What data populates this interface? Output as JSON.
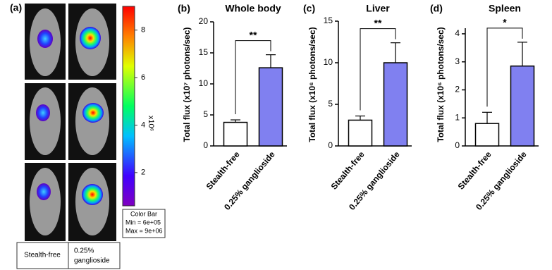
{
  "chart_data": [
    {
      "type": "bar",
      "panel_label": "(b)",
      "title": "Whole body",
      "y_label": "Total flux (x10⁷ photons/sec)",
      "categories": [
        "Stealth-free",
        "0.25% ganglioside"
      ],
      "values": [
        3.8,
        12.6
      ],
      "errors": [
        0.4,
        2.1
      ],
      "colors": [
        "#ffffff",
        "#8080f0"
      ],
      "significance": "**",
      "ylim": [
        0,
        20
      ],
      "yticks": [
        0,
        5,
        10,
        15,
        20
      ]
    },
    {
      "type": "bar",
      "panel_label": "(c)",
      "title": "Liver",
      "y_label": "Total flux (x10⁶ photons/sec)",
      "categories": [
        "Stealth-free",
        "0.25% ganglioside"
      ],
      "values": [
        3.1,
        10.0
      ],
      "errors": [
        0.5,
        2.4
      ],
      "colors": [
        "#ffffff",
        "#8080f0"
      ],
      "significance": "**",
      "ylim": [
        0,
        15
      ],
      "yticks": [
        0,
        5,
        10,
        15
      ]
    },
    {
      "type": "bar",
      "panel_label": "(d)",
      "title": "Spleen",
      "y_label": "Total flux (x10⁶ photons/sec)",
      "categories": [
        "Stealth-free",
        "0.25% ganglioside"
      ],
      "values": [
        0.8,
        2.85
      ],
      "errors": [
        0.4,
        0.85
      ],
      "colors": [
        "#ffffff",
        "#8080f0"
      ],
      "significance": "*",
      "ylim": [
        0,
        4.2
      ],
      "yticks": [
        0,
        1,
        2,
        3,
        4
      ]
    }
  ],
  "image_panel": {
    "panel_label": "(a)",
    "colorbar_unit": "x10⁶",
    "colorbar_lim": [
      0.6,
      9
    ],
    "colorbar_ticks": [
      2,
      4,
      6,
      8
    ],
    "colorbar_box": [
      "Color Bar",
      "Min = 6e+05",
      "Max = 9e+06"
    ],
    "columns": [
      "Stealth-free",
      "0.25%",
      "ganglioside"
    ]
  }
}
